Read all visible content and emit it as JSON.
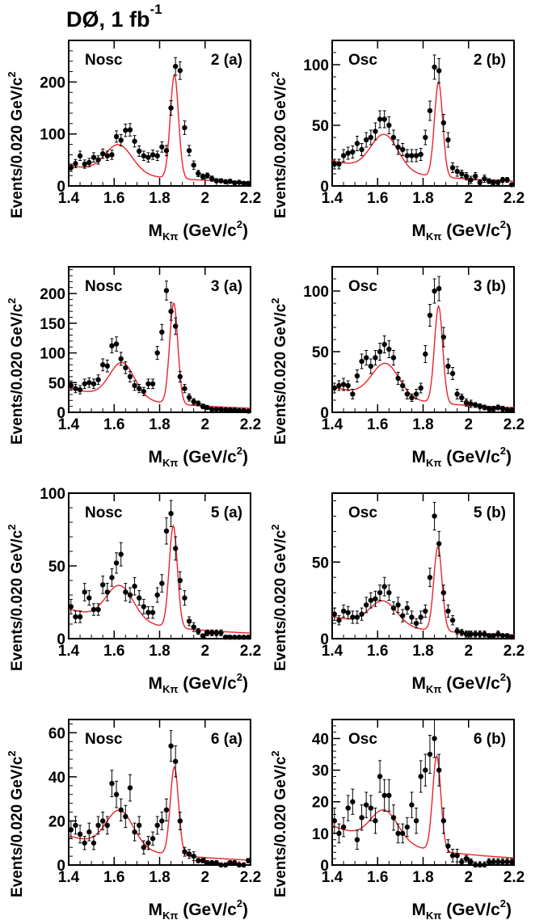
{
  "page": {
    "title_main": "DØ, 1 fb",
    "title_sup": "-1"
  },
  "axis_text": {
    "ylabel": "Events/0.020 GeV/c",
    "ylabel_sup": "2",
    "xlabel_main": "M",
    "xlabel_sub": "Kπ",
    "xlabel_rest": " (GeV/c",
    "xlabel_sup": "2",
    "xlabel_close": ")"
  },
  "colors": {
    "fit": "#e8242a",
    "points": "#000000",
    "frame": "#000000"
  },
  "chart_data": [
    {
      "type": "scatter",
      "label_left": "Nosc",
      "label_right": "2 (a)",
      "xlim": [
        1.4,
        2.2
      ],
      "ylim": [
        0,
        280
      ],
      "xticks": [
        1.4,
        1.6,
        1.8,
        2,
        2.2
      ],
      "xtick_labels": [
        "1.4",
        "1.6",
        "1.8",
        "2",
        "2.2"
      ],
      "yticks": [
        0,
        100,
        200
      ],
      "ytick_labels": [
        "0",
        "100",
        "200"
      ],
      "fit": {
        "bkg": [
          38,
          0.8
        ],
        "peaks": [
          [
            55,
            1.62,
            0.06
          ],
          [
            200,
            1.865,
            0.018
          ]
        ],
        "floor_tail": 1.9
      },
      "x": [
        1.41,
        1.43,
        1.45,
        1.47,
        1.49,
        1.51,
        1.53,
        1.55,
        1.57,
        1.59,
        1.61,
        1.63,
        1.65,
        1.67,
        1.69,
        1.71,
        1.73,
        1.75,
        1.77,
        1.79,
        1.81,
        1.83,
        1.85,
        1.87,
        1.89,
        1.91,
        1.93,
        1.95,
        1.97,
        1.99,
        2.01,
        2.03,
        2.05,
        2.07,
        2.09,
        2.11,
        2.13,
        2.15,
        2.17,
        2.19
      ],
      "y": [
        35,
        43,
        58,
        42,
        45,
        55,
        50,
        62,
        58,
        60,
        95,
        88,
        107,
        108,
        86,
        67,
        58,
        55,
        60,
        58,
        75,
        68,
        150,
        230,
        222,
        112,
        68,
        40,
        24,
        18,
        20,
        14,
        10,
        10,
        8,
        9,
        6,
        7,
        5,
        5
      ],
      "err": [
        7,
        8,
        9,
        8,
        8,
        9,
        8,
        9,
        9,
        9,
        11,
        11,
        12,
        12,
        11,
        10,
        9,
        9,
        9,
        9,
        10,
        10,
        14,
        17,
        17,
        13,
        10,
        8,
        6,
        5,
        5,
        5,
        4,
        4,
        4,
        4,
        3,
        3,
        3,
        3
      ]
    },
    {
      "type": "scatter",
      "label_left": "Osc",
      "label_right": "2 (b)",
      "xlim": [
        1.4,
        2.2
      ],
      "ylim": [
        0,
        120
      ],
      "xticks": [
        1.4,
        1.6,
        1.8,
        2,
        2.2
      ],
      "xtick_labels": [
        "1.4",
        "1.6",
        "1.8",
        "2",
        "2.2"
      ],
      "yticks": [
        0,
        50,
        100
      ],
      "ytick_labels": [
        "0",
        "50",
        "100"
      ],
      "fit": {
        "bkg": [
          20,
          0.8
        ],
        "peaks": [
          [
            30,
            1.63,
            0.06
          ],
          [
            78,
            1.868,
            0.018
          ]
        ],
        "floor_tail": 1.0
      },
      "x": [
        1.41,
        1.43,
        1.45,
        1.47,
        1.49,
        1.51,
        1.53,
        1.55,
        1.57,
        1.59,
        1.61,
        1.63,
        1.65,
        1.67,
        1.69,
        1.71,
        1.73,
        1.75,
        1.77,
        1.79,
        1.81,
        1.83,
        1.85,
        1.87,
        1.89,
        1.91,
        1.93,
        1.95,
        1.97,
        1.99,
        2.01,
        2.03,
        2.05,
        2.07,
        2.09,
        2.11,
        2.13,
        2.15,
        2.17,
        2.19
      ],
      "y": [
        18,
        18,
        25,
        27,
        28,
        35,
        30,
        38,
        40,
        45,
        55,
        55,
        50,
        40,
        32,
        30,
        25,
        25,
        25,
        26,
        40,
        62,
        98,
        95,
        52,
        38,
        15,
        12,
        10,
        8,
        5,
        8,
        3,
        6,
        4,
        3,
        3,
        5,
        5,
        1
      ],
      "err": [
        4,
        4,
        5,
        5,
        5,
        6,
        5,
        6,
        6,
        7,
        7,
        7,
        7,
        6,
        6,
        5,
        5,
        5,
        5,
        5,
        6,
        8,
        10,
        10,
        7,
        6,
        4,
        4,
        3,
        3,
        3,
        3,
        2,
        3,
        2,
        2,
        2,
        2,
        2,
        1
      ]
    },
    {
      "type": "scatter",
      "label_left": "Nosc",
      "label_right": "3 (a)",
      "xlim": [
        1.4,
        2.2
      ],
      "ylim": [
        0,
        245
      ],
      "xticks": [
        1.4,
        1.6,
        1.8,
        2,
        2.2
      ],
      "xtick_labels": [
        "1.4",
        "1.6",
        "1.8",
        "2",
        "2.2"
      ],
      "yticks": [
        0,
        50,
        100,
        150,
        200
      ],
      "ytick_labels": [
        "0",
        "50",
        "100",
        "150",
        "200"
      ],
      "fit": {
        "bkg": [
          40,
          0.8
        ],
        "peaks": [
          [
            60,
            1.635,
            0.055
          ],
          [
            170,
            1.862,
            0.018
          ]
        ],
        "floor_tail": 1.0
      },
      "x": [
        1.41,
        1.43,
        1.45,
        1.47,
        1.49,
        1.51,
        1.53,
        1.55,
        1.57,
        1.59,
        1.61,
        1.63,
        1.65,
        1.67,
        1.69,
        1.71,
        1.73,
        1.75,
        1.77,
        1.79,
        1.81,
        1.83,
        1.85,
        1.87,
        1.89,
        1.91,
        1.93,
        1.95,
        1.97,
        1.99,
        2.01,
        2.03,
        2.05,
        2.07,
        2.09,
        2.11,
        2.13,
        2.15,
        2.17,
        2.19
      ],
      "y": [
        45,
        40,
        38,
        48,
        50,
        48,
        55,
        80,
        78,
        112,
        115,
        90,
        75,
        60,
        45,
        40,
        35,
        48,
        48,
        100,
        135,
        205,
        170,
        145,
        60,
        40,
        25,
        18,
        15,
        10,
        8,
        5,
        5,
        5,
        4,
        4,
        4,
        3,
        3,
        2
      ],
      "err": [
        8,
        7,
        7,
        8,
        8,
        8,
        8,
        10,
        10,
        12,
        12,
        11,
        10,
        9,
        8,
        7,
        7,
        8,
        8,
        11,
        13,
        16,
        15,
        14,
        9,
        7,
        6,
        5,
        4,
        4,
        3,
        3,
        3,
        3,
        2,
        2,
        2,
        2,
        2,
        2
      ]
    },
    {
      "type": "scatter",
      "label_left": "Osc",
      "label_right": "3 (b)",
      "xlim": [
        1.4,
        2.2
      ],
      "ylim": [
        0,
        120
      ],
      "xticks": [
        1.4,
        1.6,
        1.8,
        2,
        2.2
      ],
      "xtick_labels": [
        "1.4",
        "1.6",
        "1.8",
        "2",
        "2.2"
      ],
      "yticks": [
        0,
        50,
        100
      ],
      "ytick_labels": [
        "0",
        "50",
        "100"
      ],
      "fit": {
        "bkg": [
          20,
          0.8
        ],
        "peaks": [
          [
            28,
            1.635,
            0.06
          ],
          [
            80,
            1.868,
            0.018
          ]
        ],
        "floor_tail": 1.0
      },
      "x": [
        1.41,
        1.43,
        1.45,
        1.47,
        1.49,
        1.51,
        1.53,
        1.55,
        1.57,
        1.59,
        1.61,
        1.63,
        1.65,
        1.67,
        1.69,
        1.71,
        1.73,
        1.75,
        1.77,
        1.79,
        1.81,
        1.83,
        1.85,
        1.87,
        1.89,
        1.91,
        1.93,
        1.95,
        1.97,
        1.99,
        2.01,
        2.03,
        2.05,
        2.07,
        2.09,
        2.11,
        2.13,
        2.15,
        2.17,
        2.19
      ],
      "y": [
        20,
        22,
        23,
        22,
        15,
        30,
        42,
        45,
        38,
        45,
        50,
        56,
        52,
        45,
        28,
        22,
        15,
        12,
        15,
        20,
        48,
        80,
        100,
        102,
        62,
        38,
        32,
        15,
        12,
        8,
        7,
        6,
        5,
        4,
        3,
        3,
        4,
        3,
        2,
        2
      ],
      "err": [
        4,
        4,
        5,
        4,
        4,
        5,
        6,
        6,
        6,
        6,
        7,
        7,
        7,
        6,
        5,
        4,
        4,
        3,
        4,
        4,
        7,
        9,
        10,
        10,
        8,
        6,
        5,
        4,
        3,
        3,
        3,
        2,
        2,
        2,
        2,
        2,
        2,
        2,
        1,
        1
      ]
    },
    {
      "type": "scatter",
      "label_left": "Nosc",
      "label_right": "5 (a)",
      "xlim": [
        1.4,
        2.2
      ],
      "ylim": [
        0,
        100
      ],
      "xticks": [
        1.4,
        1.6,
        1.8,
        2,
        2.2
      ],
      "xtick_labels": [
        "1.4",
        "1.6",
        "1.8",
        "2",
        "2.2"
      ],
      "yticks": [
        0,
        50,
        100
      ],
      "ytick_labels": [
        "0",
        "50",
        "100"
      ],
      "fit": {
        "bkg": [
          20,
          0.75
        ],
        "peaks": [
          [
            24,
            1.625,
            0.06
          ],
          [
            70,
            1.86,
            0.018
          ]
        ],
        "floor_tail": 0.5
      },
      "x": [
        1.41,
        1.43,
        1.45,
        1.47,
        1.49,
        1.51,
        1.53,
        1.55,
        1.57,
        1.59,
        1.61,
        1.63,
        1.65,
        1.67,
        1.69,
        1.71,
        1.73,
        1.75,
        1.77,
        1.79,
        1.81,
        1.83,
        1.85,
        1.87,
        1.89,
        1.91,
        1.93,
        1.95,
        1.97,
        1.99,
        2.01,
        2.03,
        2.05,
        2.07,
        2.09,
        2.11,
        2.13,
        2.15,
        2.17,
        2.19
      ],
      "y": [
        22,
        15,
        15,
        32,
        28,
        20,
        20,
        37,
        32,
        42,
        52,
        58,
        32,
        30,
        36,
        28,
        22,
        18,
        18,
        30,
        38,
        74,
        86,
        62,
        40,
        28,
        12,
        8,
        5,
        2,
        4,
        4,
        4,
        4,
        1,
        1,
        1,
        1,
        1,
        1
      ],
      "err": [
        5,
        4,
        4,
        6,
        5,
        4,
        4,
        6,
        6,
        6,
        7,
        8,
        6,
        5,
        6,
        5,
        5,
        4,
        4,
        5,
        6,
        9,
        9,
        8,
        6,
        5,
        3,
        3,
        2,
        1,
        2,
        2,
        2,
        2,
        1,
        1,
        1,
        1,
        1,
        1
      ]
    },
    {
      "type": "scatter",
      "label_left": "Osc",
      "label_right": "5 (b)",
      "xlim": [
        1.4,
        2.2
      ],
      "ylim": [
        0,
        95
      ],
      "xticks": [
        1.4,
        1.6,
        1.8,
        2,
        2.2
      ],
      "xtick_labels": [
        "1.4",
        "1.6",
        "1.8",
        "2",
        "2.2"
      ],
      "yticks": [
        0,
        50
      ],
      "ytick_labels": [
        "0",
        "50"
      ],
      "fit": {
        "bkg": [
          14,
          0.8
        ],
        "peaks": [
          [
            16,
            1.625,
            0.06
          ],
          [
            55,
            1.865,
            0.018
          ]
        ],
        "floor_tail": 0.5
      },
      "x": [
        1.41,
        1.43,
        1.45,
        1.47,
        1.49,
        1.51,
        1.53,
        1.55,
        1.57,
        1.59,
        1.61,
        1.63,
        1.65,
        1.67,
        1.69,
        1.71,
        1.73,
        1.75,
        1.77,
        1.79,
        1.81,
        1.83,
        1.85,
        1.87,
        1.89,
        1.91,
        1.93,
        1.95,
        1.97,
        1.99,
        2.01,
        2.03,
        2.05,
        2.07,
        2.09,
        2.11,
        2.13,
        2.15,
        2.17,
        2.19
      ],
      "y": [
        16,
        12,
        18,
        17,
        14,
        14,
        16,
        22,
        25,
        26,
        30,
        34,
        30,
        20,
        22,
        15,
        20,
        14,
        10,
        14,
        18,
        40,
        80,
        62,
        30,
        18,
        12,
        5,
        4,
        3,
        3,
        3,
        3,
        3,
        2,
        2,
        3,
        2,
        2,
        1
      ],
      "err": [
        4,
        3,
        4,
        4,
        4,
        4,
        4,
        5,
        5,
        5,
        5,
        6,
        5,
        4,
        5,
        4,
        4,
        4,
        3,
        4,
        4,
        6,
        9,
        8,
        5,
        4,
        3,
        2,
        2,
        2,
        2,
        2,
        2,
        2,
        1,
        1,
        2,
        1,
        1,
        1
      ]
    },
    {
      "type": "scatter",
      "label_left": "Nosc",
      "label_right": "6 (a)",
      "xlim": [
        1.4,
        2.2
      ],
      "ylim": [
        0,
        66
      ],
      "xticks": [
        1.4,
        1.6,
        1.8,
        2,
        2.2
      ],
      "xtick_labels": [
        "1.4",
        "1.6",
        "1.8",
        "2",
        "2.2"
      ],
      "yticks": [
        0,
        20,
        40,
        60
      ],
      "ytick_labels": [
        "0",
        "20",
        "40",
        "60"
      ],
      "fit": {
        "bkg": [
          13,
          0.8
        ],
        "peaks": [
          [
            17,
            1.625,
            0.06
          ],
          [
            40,
            1.865,
            0.018
          ]
        ],
        "floor_tail": 0.3
      },
      "x": [
        1.41,
        1.43,
        1.45,
        1.47,
        1.49,
        1.51,
        1.53,
        1.55,
        1.57,
        1.59,
        1.61,
        1.63,
        1.65,
        1.67,
        1.69,
        1.71,
        1.73,
        1.75,
        1.77,
        1.79,
        1.81,
        1.83,
        1.85,
        1.87,
        1.89,
        1.91,
        1.93,
        1.95,
        1.97,
        1.99,
        2.01,
        2.03,
        2.05,
        2.07,
        2.09,
        2.11,
        2.13,
        2.15,
        2.17,
        2.19
      ],
      "y": [
        16,
        18,
        14,
        10,
        15,
        10,
        18,
        20,
        18,
        37,
        32,
        25,
        22,
        35,
        15,
        18,
        8,
        10,
        12,
        18,
        20,
        25,
        54,
        47,
        20,
        6,
        5,
        4,
        2,
        2,
        1,
        1,
        1,
        0,
        0,
        1,
        1,
        0,
        0,
        2
      ],
      "err": [
        4,
        4,
        4,
        3,
        4,
        3,
        4,
        4,
        4,
        6,
        6,
        5,
        5,
        6,
        4,
        4,
        3,
        3,
        3,
        4,
        4,
        5,
        7,
        7,
        4,
        2,
        2,
        2,
        1,
        1,
        1,
        1,
        1,
        1,
        1,
        1,
        1,
        1,
        1,
        1
      ]
    },
    {
      "type": "scatter",
      "label_left": "Osc",
      "label_right": "6 (b)",
      "xlim": [
        1.4,
        2.2
      ],
      "ylim": [
        0,
        46
      ],
      "xticks": [
        1.4,
        1.6,
        1.8,
        2,
        2.2
      ],
      "xtick_labels": [
        "1.4",
        "1.6",
        "1.8",
        "2",
        "2.2"
      ],
      "yticks": [
        0,
        10,
        20,
        30,
        40
      ],
      "ytick_labels": [
        "0",
        "10",
        "20",
        "30",
        "40"
      ],
      "fit": {
        "bkg": [
          12,
          0.8
        ],
        "peaks": [
          [
            10,
            1.63,
            0.06
          ],
          [
            30,
            1.86,
            0.018
          ]
        ],
        "floor_tail": 0.5
      },
      "x": [
        1.41,
        1.43,
        1.45,
        1.47,
        1.49,
        1.51,
        1.53,
        1.55,
        1.57,
        1.59,
        1.61,
        1.63,
        1.65,
        1.67,
        1.69,
        1.71,
        1.73,
        1.75,
        1.77,
        1.79,
        1.81,
        1.83,
        1.85,
        1.87,
        1.89,
        1.91,
        1.93,
        1.95,
        1.97,
        1.99,
        2.01,
        2.03,
        2.05,
        2.07,
        2.09,
        2.11,
        2.13,
        2.15,
        2.17,
        2.19
      ],
      "y": [
        14,
        10,
        12,
        18,
        20,
        8,
        15,
        19,
        18,
        14,
        28,
        22,
        22,
        15,
        10,
        10,
        12,
        19,
        14,
        28,
        30,
        35,
        40,
        30,
        14,
        6,
        3,
        3,
        1,
        2,
        1,
        0,
        0,
        0,
        1,
        1,
        1,
        1,
        1,
        1
      ],
      "err": [
        4,
        3,
        3,
        4,
        4,
        3,
        4,
        4,
        4,
        4,
        5,
        5,
        5,
        4,
        3,
        3,
        3,
        4,
        4,
        5,
        5,
        6,
        6,
        5,
        4,
        2,
        2,
        2,
        1,
        1,
        1,
        1,
        1,
        1,
        1,
        1,
        1,
        1,
        1,
        1
      ]
    }
  ]
}
